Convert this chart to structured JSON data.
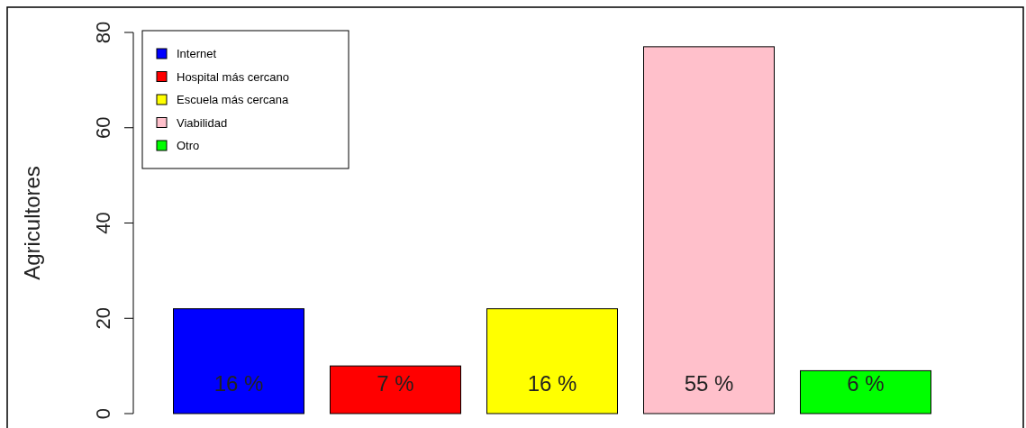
{
  "chart_data": {
    "type": "bar",
    "ylabel": "Agricultores",
    "categories": [
      null,
      null,
      null,
      null,
      null
    ],
    "stacked": true,
    "series": [
      {
        "name": "Internet",
        "color": "#0000ff",
        "values": [
          22,
          null,
          null,
          null,
          null
        ]
      },
      {
        "name": "Hospital más cercano",
        "color": "#ff0000",
        "values": [
          null,
          10,
          null,
          null,
          null
        ]
      },
      {
        "name": "Escuela más cercana",
        "color": "#ffff00",
        "values": [
          null,
          null,
          22,
          null,
          null
        ]
      },
      {
        "name": "Viabilidad",
        "color": "#ffc0cb",
        "values": [
          null,
          null,
          null,
          77,
          null
        ]
      },
      {
        "name": "Otro",
        "color": "#00ff00",
        "values": [
          null,
          null,
          null,
          null,
          9
        ]
      }
    ],
    "annotations": [
      "16 %",
      "7 %",
      "16 %",
      "55 %",
      "6 %"
    ],
    "ylim": [
      0,
      80
    ],
    "yticks": [
      0,
      20,
      40,
      60,
      80
    ],
    "legend": "top left",
    "grid": false
  }
}
